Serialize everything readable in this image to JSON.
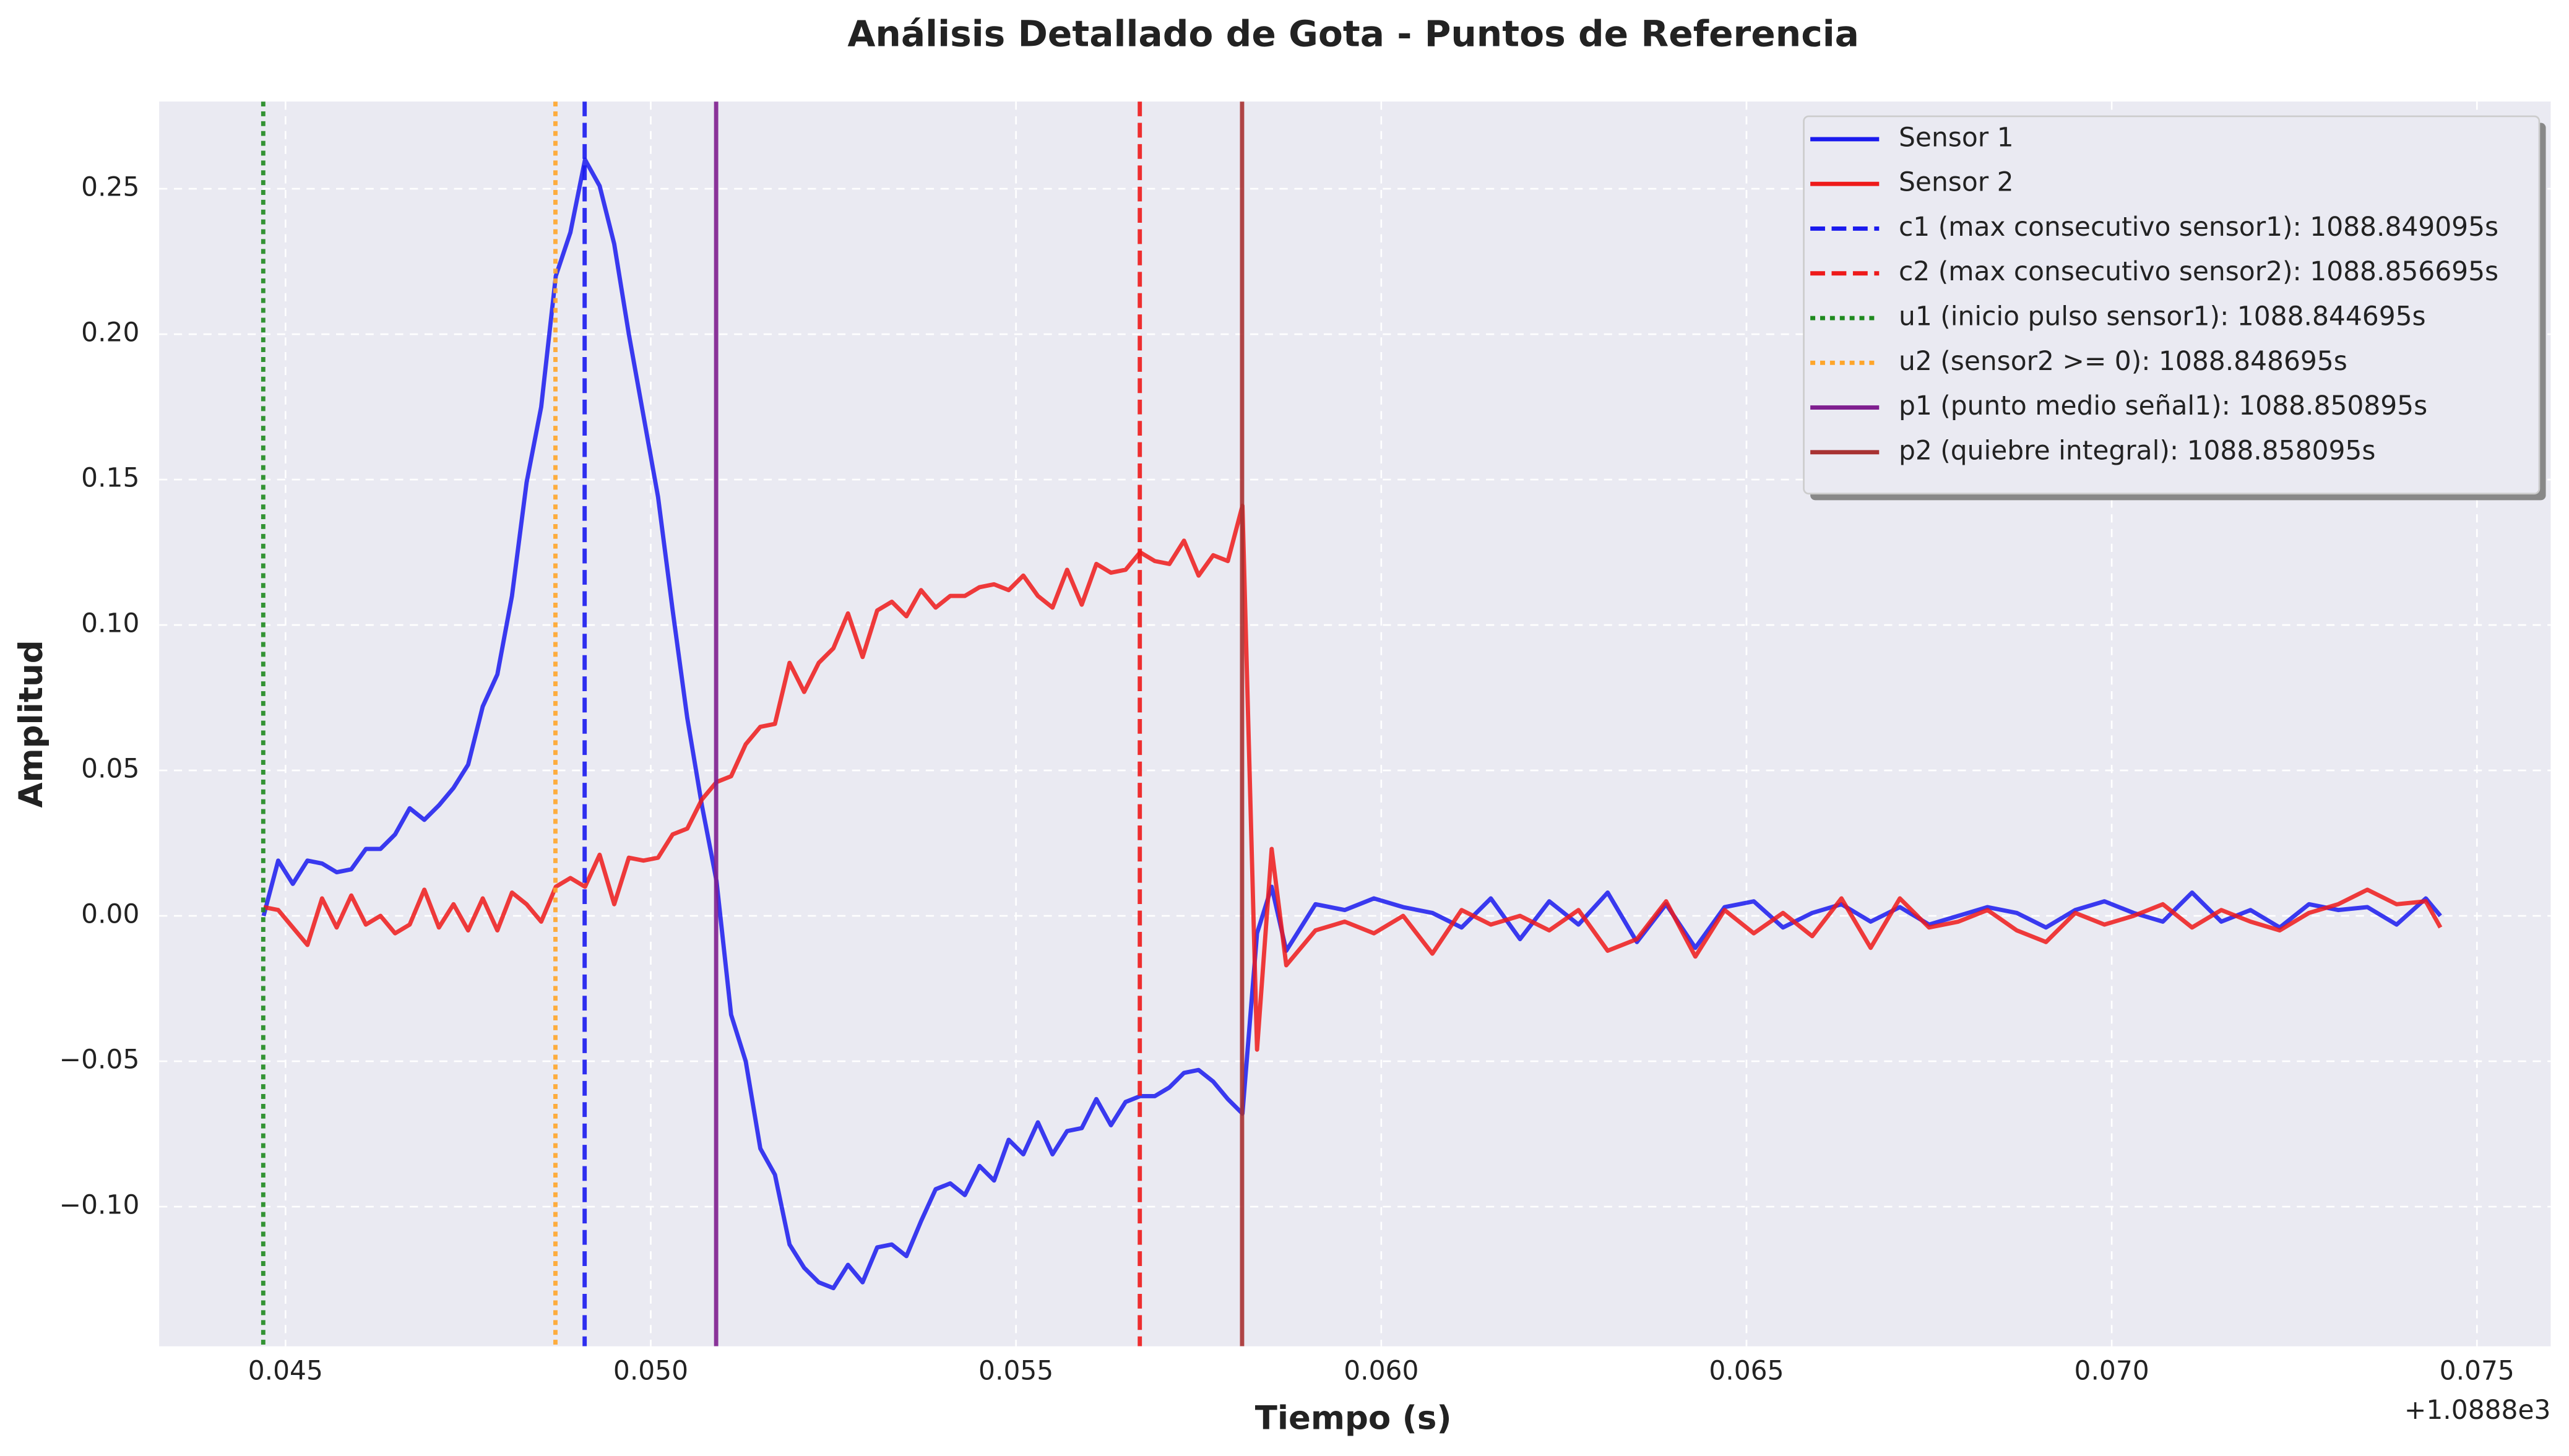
{
  "chart_data": {
    "type": "line",
    "title": "Análisis Detallado de Gota - Puntos de Referencia",
    "xlabel": "Tiempo (s)",
    "ylabel": "Amplitud",
    "x_offset_label": "+1.0888e3",
    "xlim": [
      0.04327,
      0.07601
    ],
    "ylim": [
      -0.148,
      0.28
    ],
    "xticks": [
      0.045,
      {
        "value": 0.05,
        "label": "0.050"
      },
      0.055,
      {
        "value": 0.06,
        "label": "0.060"
      },
      0.065,
      {
        "value": 0.07,
        "label": "0.070"
      },
      0.075
    ],
    "yticks": [
      {
        "value": -0.1,
        "label": "−0.10"
      },
      {
        "value": -0.05,
        "label": "−0.05"
      },
      {
        "value": 0,
        "label": "0.00"
      },
      0.05,
      {
        "value": 0.1,
        "label": "0.10"
      },
      0.15,
      {
        "value": 0.2,
        "label": "0.20"
      },
      0.25
    ],
    "grid": true,
    "legend_position": "upper-right",
    "x": [
      0.0447,
      0.0449,
      0.0451,
      0.0453,
      0.0455,
      0.0457,
      0.0459,
      0.0461,
      0.0463,
      0.0465,
      0.0467,
      0.0469,
      0.0471,
      0.0473,
      0.0475,
      0.0477,
      0.0479,
      0.0481,
      0.0483,
      0.0485,
      0.0487,
      0.0489,
      0.0491,
      0.0493,
      0.0495,
      0.0497,
      0.0499,
      0.0501,
      0.0503,
      0.0505,
      0.0507,
      0.0509,
      0.0511,
      0.0513,
      0.0515,
      0.0517,
      0.0519,
      0.0521,
      0.0523,
      0.0525,
      0.0527,
      0.0529,
      0.0531,
      0.0533,
      0.0535,
      0.0537,
      0.0539,
      0.0541,
      0.0543,
      0.0545,
      0.0547,
      0.0549,
      0.0551,
      0.0553,
      0.0555,
      0.0557,
      0.0559,
      0.0561,
      0.0563,
      0.0565,
      0.0567,
      0.0569,
      0.0571,
      0.0573,
      0.0575,
      0.0577,
      0.0579,
      0.0581,
      0.0583,
      0.0585,
      0.0587,
      0.0591,
      0.0595,
      0.0599,
      0.0603,
      0.0607,
      0.0611,
      0.0615,
      0.0619,
      0.0623,
      0.0627,
      0.0631,
      0.0635,
      0.0639,
      0.0643,
      0.0647,
      0.0651,
      0.0655,
      0.0659,
      0.0663,
      0.0667,
      0.0671,
      0.0675,
      0.0679,
      0.0683,
      0.0687,
      0.0691,
      0.0695,
      0.0699,
      0.0703,
      0.0707,
      0.0711,
      0.0715,
      0.0719,
      0.0723,
      0.0727,
      0.0731,
      0.0735,
      0.0739,
      0.0743,
      0.0745
    ],
    "series": [
      {
        "name": "Sensor 1",
        "color": "#1a1aee",
        "values": [
          0.0,
          0.019,
          0.011,
          0.019,
          0.018,
          0.015,
          0.016,
          0.023,
          0.023,
          0.028,
          0.037,
          0.033,
          0.038,
          0.044,
          0.052,
          0.072,
          0.083,
          0.11,
          0.149,
          0.175,
          0.22,
          0.235,
          0.26,
          0.251,
          0.231,
          0.2,
          0.172,
          0.144,
          0.105,
          0.068,
          0.038,
          0.012,
          -0.034,
          -0.05,
          -0.08,
          -0.089,
          -0.113,
          -0.121,
          -0.126,
          -0.128,
          -0.12,
          -0.126,
          -0.114,
          -0.113,
          -0.117,
          -0.105,
          -0.094,
          -0.092,
          -0.096,
          -0.086,
          -0.091,
          -0.077,
          -0.082,
          -0.071,
          -0.082,
          -0.074,
          -0.073,
          -0.063,
          -0.072,
          -0.064,
          -0.062,
          -0.062,
          -0.059,
          -0.054,
          -0.053,
          -0.057,
          -0.063,
          -0.068,
          -0.006,
          0.01,
          -0.012,
          0.004,
          0.002,
          0.006,
          0.003,
          0.001,
          -0.004,
          0.006,
          -0.008,
          0.005,
          -0.003,
          0.008,
          -0.009,
          0.004,
          -0.011,
          0.003,
          0.005,
          -0.004,
          0.001,
          0.004,
          -0.002,
          0.003,
          -0.003,
          0.0,
          0.003,
          0.001,
          -0.004,
          0.002,
          0.005,
          0.001,
          -0.002,
          0.008,
          -0.002,
          0.002,
          -0.004,
          0.004,
          0.002,
          0.003,
          -0.003,
          0.006,
          0.0
        ]
      },
      {
        "name": "Sensor 2",
        "color": "#ee1a1a",
        "values": [
          0.003,
          0.002,
          -0.004,
          -0.01,
          0.006,
          -0.004,
          0.007,
          -0.003,
          0.0,
          -0.006,
          -0.003,
          0.009,
          -0.004,
          0.004,
          -0.005,
          0.006,
          -0.005,
          0.008,
          0.004,
          -0.002,
          0.01,
          0.013,
          0.01,
          0.021,
          0.004,
          0.02,
          0.019,
          0.02,
          0.028,
          0.03,
          0.04,
          0.046,
          0.048,
          0.059,
          0.065,
          0.066,
          0.087,
          0.077,
          0.087,
          0.092,
          0.104,
          0.089,
          0.105,
          0.108,
          0.103,
          0.112,
          0.106,
          0.11,
          0.11,
          0.113,
          0.114,
          0.112,
          0.117,
          0.11,
          0.106,
          0.119,
          0.107,
          0.121,
          0.118,
          0.119,
          0.125,
          0.122,
          0.121,
          0.129,
          0.117,
          0.124,
          0.122,
          0.141,
          -0.046,
          0.023,
          -0.017,
          -0.005,
          -0.002,
          -0.006,
          0.0,
          -0.013,
          0.002,
          -0.003,
          0.0,
          -0.005,
          0.002,
          -0.012,
          -0.008,
          0.005,
          -0.014,
          0.002,
          -0.006,
          0.001,
          -0.007,
          0.006,
          -0.011,
          0.006,
          -0.004,
          -0.002,
          0.002,
          -0.005,
          -0.009,
          0.001,
          -0.003,
          0.0,
          0.004,
          -0.004,
          0.002,
          -0.002,
          -0.005,
          0.001,
          0.004,
          0.009,
          0.004,
          0.005,
          -0.004
        ]
      }
    ],
    "vlines": [
      {
        "name": "c1 (max consecutivo sensor1): 1088.849095s",
        "x": 0.049095,
        "color": "#1a1aee",
        "style": "dashed"
      },
      {
        "name": "c2 (max consecutivo sensor2): 1088.856695s",
        "x": 0.056695,
        "color": "#ee1a1a",
        "style": "dashed"
      },
      {
        "name": "u1 (inicio pulso sensor1): 1088.844695s",
        "x": 0.044695,
        "color": "#1f8a1f",
        "style": "dotted"
      },
      {
        "name": "u2 (sensor2 >= 0): 1088.848695s",
        "x": 0.048695,
        "color": "#ffa52a",
        "style": "dotted"
      },
      {
        "name": "p1 (punto medio señal1): 1088.850895s",
        "x": 0.050895,
        "color": "#7f1f8f",
        "style": "solid"
      },
      {
        "name": "p2 (quiebre integral): 1088.858095s",
        "x": 0.058095,
        "color": "#a83232",
        "style": "solid"
      }
    ]
  }
}
